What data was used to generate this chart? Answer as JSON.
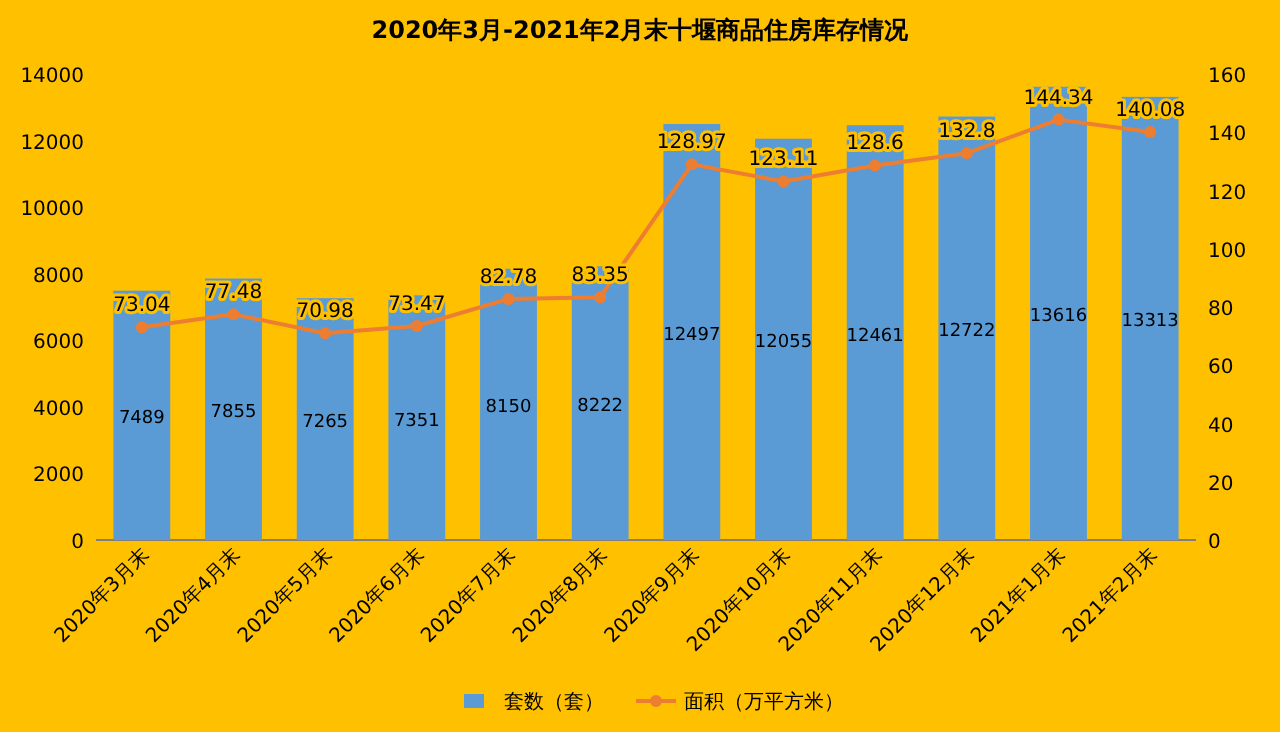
{
  "chart_data": {
    "type": "bar",
    "title": "2020年3月-2021年2月末十堰商品住房库存情况",
    "categories": [
      "2020年3月末",
      "2020年4月末",
      "2020年5月末",
      "2020年6月末",
      "2020年7月末",
      "2020年8月末",
      "2020年9月末",
      "2020年10月末",
      "2020年11月末",
      "2020年12月末",
      "2021年1月末",
      "2021年2月末"
    ],
    "series": [
      {
        "name": "套数（套）",
        "color": "#5b9bd5",
        "values": [
          7489,
          7855,
          7265,
          7351,
          8150,
          8222,
          12497,
          12055,
          12461,
          12722,
          13616,
          13313
        ]
      },
      {
        "type": "line",
        "name": "面积（万平方米）",
        "color": "#ed7d31",
        "axis": "y2",
        "marker": "circle",
        "values": [
          73.04,
          77.48,
          70.98,
          73.47,
          82.78,
          83.35,
          128.97,
          123.11,
          128.6,
          132.8,
          144.34,
          140.08
        ]
      }
    ],
    "ylim": [
      0,
      14000
    ],
    "yticks": [
      0,
      2000,
      4000,
      6000,
      8000,
      10000,
      12000,
      14000
    ],
    "y2lim": [
      0,
      160
    ],
    "y2ticks": [
      0,
      20,
      40,
      60,
      80,
      100,
      120,
      140,
      160
    ],
    "data_labels": true,
    "legend": "bottom"
  }
}
